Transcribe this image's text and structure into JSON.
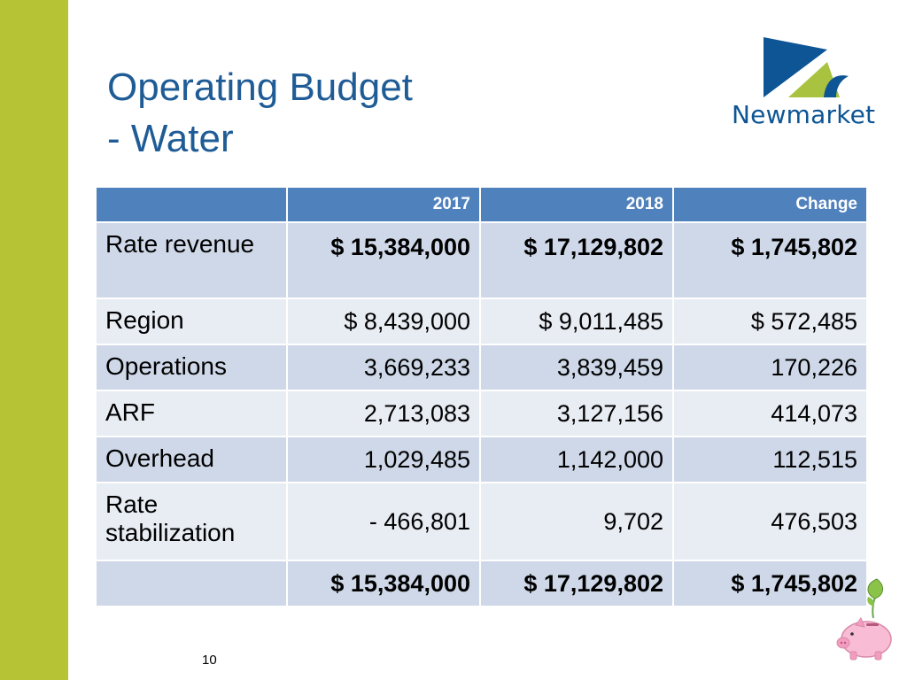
{
  "slide": {
    "title_line1": "Operating Budget",
    "title_line2": "- Water",
    "page_number": "10"
  },
  "logo": {
    "text": "Newmarket"
  },
  "table": {
    "headers": [
      "",
      "2017",
      "2018",
      "Change"
    ],
    "rows": [
      {
        "label": "Rate revenue",
        "v2017": "$ 15,384,000",
        "v2018": "$ 17,129,802",
        "change": "$ 1,745,802"
      },
      {
        "label": "Region",
        "v2017": "$ 8,439,000",
        "v2018": "$ 9,011,485",
        "change": "$ 572,485"
      },
      {
        "label": "Operations",
        "v2017": "3,669,233",
        "v2018": "3,839,459",
        "change": "170,226"
      },
      {
        "label": "ARF",
        "v2017": "2,713,083",
        "v2018": "3,127,156",
        "change": "414,073"
      },
      {
        "label": "Overhead",
        "v2017": "1,029,485",
        "v2018": "1,142,000",
        "change": "112,515"
      },
      {
        "label": "Rate stabilization",
        "v2017": "- 466,801",
        "v2018": "9,702",
        "change": "476,503"
      },
      {
        "label": "",
        "v2017": "$ 15,384,000",
        "v2018": "$ 17,129,802",
        "change": "$ 1,745,802"
      }
    ]
  },
  "colors": {
    "accent_bar": "#b5c334",
    "title": "#1f5c96",
    "header_bg": "#4f81bd",
    "row_dark": "#cfd8e8",
    "row_light": "#e8ecf3",
    "logo_blue": "#0d5594",
    "logo_green": "#a9c23f"
  },
  "icons": {
    "logo": "newmarket-logo-icon",
    "piggy": "piggy-bank-icon"
  }
}
